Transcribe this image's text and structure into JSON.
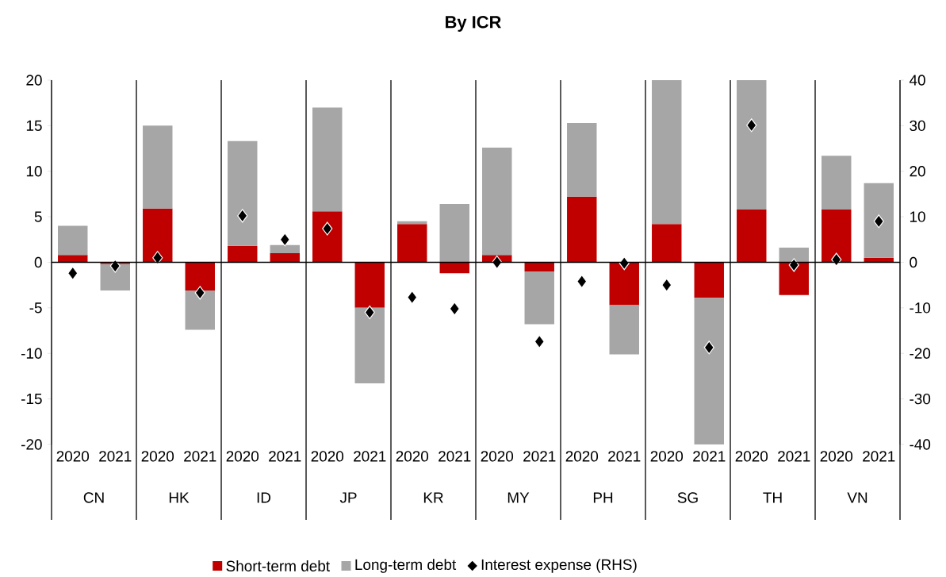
{
  "chart_data": {
    "type": "bar",
    "title": "By ICR",
    "categories": [
      "2020",
      "2021",
      "2020",
      "2021",
      "2020",
      "2021",
      "2020",
      "2021",
      "2020",
      "2021",
      "2020",
      "2021",
      "2020",
      "2021",
      "2020",
      "2021",
      "2020",
      "2021",
      "2020",
      "2021"
    ],
    "annotations": [
      "CN",
      "HK",
      "ID",
      "JP",
      "KR",
      "MY",
      "PH",
      "SG",
      "TH",
      "VN"
    ],
    "stacked": true,
    "series": [
      {
        "name": "Short-term debt",
        "color": "#c00000",
        "values": [
          0.8,
          -0.2,
          5.9,
          -3.1,
          1.8,
          1.0,
          5.6,
          -5.0,
          4.2,
          -1.2,
          0.8,
          -1.0,
          7.2,
          -4.7,
          4.2,
          -3.9,
          5.8,
          -3.6,
          5.8,
          0.5
        ]
      },
      {
        "name": "Long-term debt",
        "color": "#a6a6a6",
        "values": [
          3.2,
          -2.9,
          9.1,
          -4.3,
          11.5,
          0.9,
          11.4,
          -8.3,
          0.3,
          6.4,
          11.8,
          -5.8,
          8.1,
          -5.4,
          15.8,
          -16.1,
          14.2,
          1.6,
          5.9,
          8.2
        ]
      },
      {
        "name": "Interest expense (RHS)",
        "type": "scatter",
        "axis": "y2",
        "color": "#000000",
        "values": [
          -2.4,
          -0.8,
          1.0,
          -6.7,
          10.2,
          5.0,
          7.4,
          -11.0,
          -7.7,
          -10.2,
          0.0,
          -17.4,
          -4.2,
          -0.2,
          -5.0,
          -18.7,
          30.1,
          -0.6,
          0.6,
          9.0
        ]
      }
    ],
    "marker": "diamond",
    "ylim": [
      -20,
      20
    ],
    "yticks": [
      -20,
      -15,
      -10,
      -5,
      0,
      5,
      10,
      15,
      20
    ],
    "y2lim": [
      -40,
      40
    ],
    "y2ticks": [
      -40,
      -30,
      -20,
      -10,
      0,
      10,
      20,
      30,
      40
    ],
    "legend": "bottom"
  }
}
